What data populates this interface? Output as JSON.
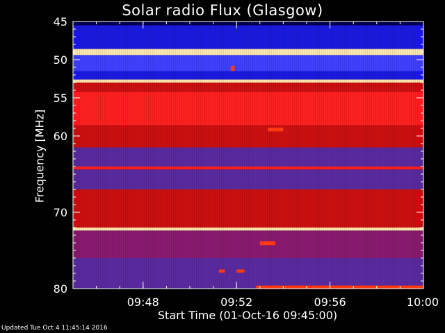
{
  "chart_data": {
    "type": "heatmap",
    "title": "Solar radio Flux (Glasgow)",
    "xlabel": "Start Time (01-Oct-16 09:45:00)",
    "ylabel": "Frequency [MHz]",
    "x_unit": "time",
    "xlim": [
      "09:45",
      "10:00"
    ],
    "ylim": [
      45,
      80
    ],
    "y_inverted": true,
    "x_ticks": [
      {
        "value": "09:48",
        "label": "09:48"
      },
      {
        "value": "09:52",
        "label": "09:52"
      },
      {
        "value": "09:56",
        "label": "09:56"
      },
      {
        "value": "10:00",
        "label": "10:00"
      }
    ],
    "y_ticks": [
      {
        "value": 45,
        "label": "45"
      },
      {
        "value": 50,
        "label": "50"
      },
      {
        "value": 55,
        "label": "55"
      },
      {
        "value": 60,
        "label": "60"
      },
      {
        "value": 70,
        "label": "70"
      },
      {
        "value": 80,
        "label": "80"
      }
    ],
    "colormap": [
      "#000050",
      "#1a1ae0",
      "#4040ff",
      "#9a1860",
      "#cc1010",
      "#ff2020",
      "#ffe8b0"
    ],
    "frequency_bands": [
      {
        "from": 45.0,
        "to": 45.5,
        "level": "deep-blue"
      },
      {
        "from": 45.5,
        "to": 48.6,
        "level": "dark-blue"
      },
      {
        "from": 48.6,
        "to": 49.4,
        "level": "bright-interference"
      },
      {
        "from": 49.4,
        "to": 51.5,
        "level": "blue"
      },
      {
        "from": 51.5,
        "to": 52.6,
        "level": "dark-blue"
      },
      {
        "from": 52.6,
        "to": 53.0,
        "level": "bright-interference"
      },
      {
        "from": 53.0,
        "to": 54.2,
        "level": "red"
      },
      {
        "from": 54.2,
        "to": 58.6,
        "level": "bright-red"
      },
      {
        "from": 58.6,
        "to": 61.5,
        "level": "red"
      },
      {
        "from": 61.5,
        "to": 64.0,
        "level": "purple"
      },
      {
        "from": 64.0,
        "to": 64.4,
        "level": "bright-red"
      },
      {
        "from": 64.4,
        "to": 67.0,
        "level": "purple"
      },
      {
        "from": 67.0,
        "to": 72.0,
        "level": "red"
      },
      {
        "from": 72.0,
        "to": 72.4,
        "level": "bright-interference"
      },
      {
        "from": 72.4,
        "to": 76.0,
        "level": "purple-red"
      },
      {
        "from": 76.0,
        "to": 80.0,
        "level": "purple"
      }
    ],
    "features": [
      {
        "name": "burst",
        "time_start": "09:51:45",
        "time_end": "09:51:55",
        "freq_start": 50.8,
        "freq_end": 51.5
      },
      {
        "name": "burst",
        "time_start": "09:53:20",
        "time_end": "09:54:00",
        "freq_start": 58.9,
        "freq_end": 59.4
      },
      {
        "name": "burst",
        "time_start": "09:53:00",
        "time_end": "09:53:40",
        "freq_start": 73.8,
        "freq_end": 74.3
      },
      {
        "name": "burst",
        "time_start": "09:51:15",
        "time_end": "09:51:30",
        "freq_start": 77.5,
        "freq_end": 77.9
      },
      {
        "name": "burst",
        "time_start": "09:52:00",
        "time_end": "09:52:20",
        "freq_start": 77.5,
        "freq_end": 77.9
      },
      {
        "name": "burst",
        "time_start": "09:52:50",
        "time_end": "10:00:00",
        "freq_start": 79.6,
        "freq_end": 80.0
      }
    ]
  },
  "footer": "Updated Tue Oct  4 11:45:14 2016"
}
